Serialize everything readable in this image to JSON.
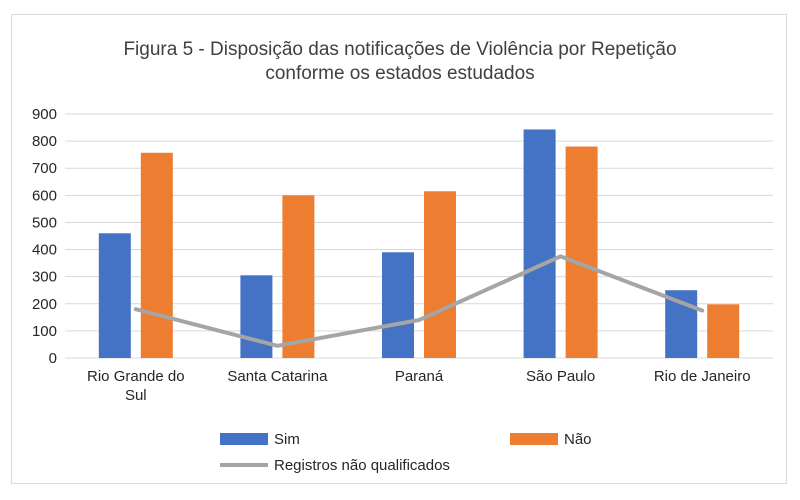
{
  "chart_data": {
    "type": "bar",
    "title_lines": [
      "Figura 5 - Disposição das notificações de Violência por Repetição",
      "conforme os estados estudados"
    ],
    "categories": [
      [
        "Rio Grande do",
        "Sul"
      ],
      [
        "Santa Catarina"
      ],
      [
        "Paraná"
      ],
      [
        "São Paulo"
      ],
      [
        "Rio de Janeiro"
      ]
    ],
    "series": [
      {
        "name": "Sim",
        "type": "bar",
        "color": "#4472c4",
        "values": [
          460,
          305,
          390,
          843,
          250
        ]
      },
      {
        "name": "Não",
        "type": "bar",
        "color": "#ed7d31",
        "values": [
          757,
          600,
          615,
          780,
          198
        ]
      },
      {
        "name": "Registros não qualificados",
        "type": "line",
        "color": "#a5a5a5",
        "values": [
          180,
          45,
          140,
          375,
          175
        ]
      }
    ],
    "ylim": [
      0,
      900
    ],
    "yticks": [
      "0",
      "100",
      "200",
      "300",
      "400",
      "500",
      "600",
      "700",
      "800",
      "900"
    ],
    "grid": true,
    "legend_position": "bottom"
  }
}
